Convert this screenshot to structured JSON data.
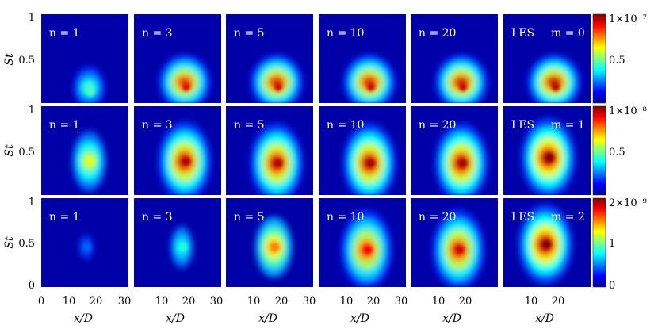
{
  "figure": {
    "x_label": "x/D",
    "y_label": "St",
    "x_ticks_first": [
      "0",
      "10",
      "20",
      "30"
    ],
    "x_ticks_rest": [
      "10",
      "20",
      "30"
    ],
    "x_ticks_last": [
      "10",
      "20"
    ],
    "y_ticks_top": [
      "1",
      "0.5"
    ],
    "y_ticks_bottom": [
      "1",
      "0.5",
      "0"
    ]
  },
  "chart_data": {
    "type": "heatmap",
    "x_range": [
      0,
      30
    ],
    "y_range": [
      0,
      1
    ],
    "colormap": "jet",
    "columns": [
      "n = 1",
      "n = 3",
      "n = 5",
      "n = 10",
      "n = 20",
      "LES"
    ],
    "rows": [
      {
        "mode": "m = 0",
        "panel_labels": [
          "n = 1",
          "n = 3",
          "n = 5",
          "n = 10",
          "n = 20",
          "LES"
        ],
        "colorbar": {
          "max_label": "1×10⁻⁷",
          "mid_label": "0.5",
          "min_label": ""
        },
        "peaks": [
          {
            "x": 17,
            "st": 0.12,
            "intensity": 0.45
          },
          {
            "x": 18,
            "st": 0.18,
            "intensity": 0.9
          },
          {
            "x": 18,
            "st": 0.18,
            "intensity": 0.92
          },
          {
            "x": 18,
            "st": 0.18,
            "intensity": 0.92
          },
          {
            "x": 18,
            "st": 0.18,
            "intensity": 0.93
          },
          {
            "x": 18,
            "st": 0.18,
            "intensity": 0.95
          }
        ]
      },
      {
        "mode": "m = 1",
        "panel_labels": [
          "n = 1",
          "n = 3",
          "n = 5",
          "n = 10",
          "n = 20",
          "LES"
        ],
        "colorbar": {
          "max_label": "1×10⁻⁸",
          "mid_label": "0.5",
          "min_label": ""
        },
        "peaks": [
          {
            "x": 17,
            "st": 0.38,
            "intensity": 0.6
          },
          {
            "x": 18,
            "st": 0.38,
            "intensity": 0.95
          },
          {
            "x": 18,
            "st": 0.36,
            "intensity": 0.95
          },
          {
            "x": 18,
            "st": 0.36,
            "intensity": 0.96
          },
          {
            "x": 18,
            "st": 0.36,
            "intensity": 0.96
          },
          {
            "x": 16,
            "st": 0.42,
            "intensity": 1.0
          }
        ]
      },
      {
        "mode": "m = 2",
        "panel_labels": [
          "n = 1",
          "n = 3",
          "n = 5",
          "n = 10",
          "n = 20",
          "LES"
        ],
        "colorbar": {
          "max_label": "2×10⁻⁹",
          "mid_label": "1",
          "min_label": "0"
        },
        "peaks": [
          {
            "x": 16,
            "st": 0.45,
            "intensity": 0.22
          },
          {
            "x": 17,
            "st": 0.45,
            "intensity": 0.4
          },
          {
            "x": 17,
            "st": 0.45,
            "intensity": 0.75
          },
          {
            "x": 17,
            "st": 0.42,
            "intensity": 0.88
          },
          {
            "x": 17,
            "st": 0.42,
            "intensity": 0.92
          },
          {
            "x": 15,
            "st": 0.48,
            "intensity": 1.0
          }
        ]
      }
    ]
  }
}
